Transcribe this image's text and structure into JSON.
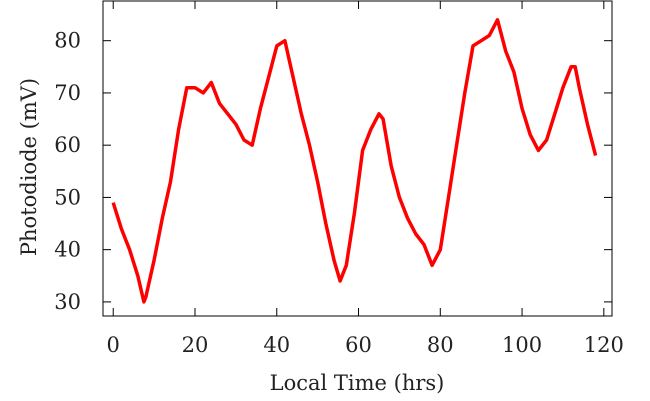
{
  "chart_data": {
    "type": "line",
    "x_label": "Local Time (hrs)",
    "y_label": "Photodiode (mV)",
    "x": [
      0,
      2,
      4,
      6,
      7.5,
      8,
      10,
      12,
      14,
      16,
      18,
      20,
      22,
      24,
      26,
      28,
      30,
      32,
      34,
      36,
      38,
      40,
      42,
      44,
      46,
      48,
      50,
      52,
      54,
      55.5,
      57,
      59,
      61,
      63,
      65,
      66,
      68,
      70,
      72,
      74,
      76,
      78,
      80,
      82,
      84,
      86,
      88,
      90,
      92,
      94,
      96,
      98,
      100,
      102,
      104,
      106,
      108,
      110,
      112,
      113,
      114,
      116,
      118
    ],
    "series": [
      {
        "color": "#ff0000",
        "values": [
          49,
          44,
          40,
          35,
          30,
          31,
          38,
          46,
          53,
          63,
          71,
          71,
          70,
          72,
          68,
          66,
          64,
          61,
          60,
          67,
          73,
          79,
          80,
          73,
          66,
          60,
          53,
          45,
          38,
          34,
          37,
          47,
          59,
          63,
          66,
          65,
          56,
          50,
          46,
          43,
          41,
          37,
          40,
          50,
          60,
          70,
          79,
          80,
          81,
          84,
          78,
          74,
          67,
          62,
          59,
          61,
          66,
          71,
          75,
          75,
          71,
          64,
          58
        ]
      }
    ],
    "xlim": [
      -2.5,
      122
    ],
    "ylim": [
      27.3,
      87.6
    ],
    "xticks": [
      0,
      20,
      40,
      60,
      80,
      100,
      120
    ],
    "yticks": [
      30,
      40,
      50,
      60,
      70,
      80
    ]
  }
}
